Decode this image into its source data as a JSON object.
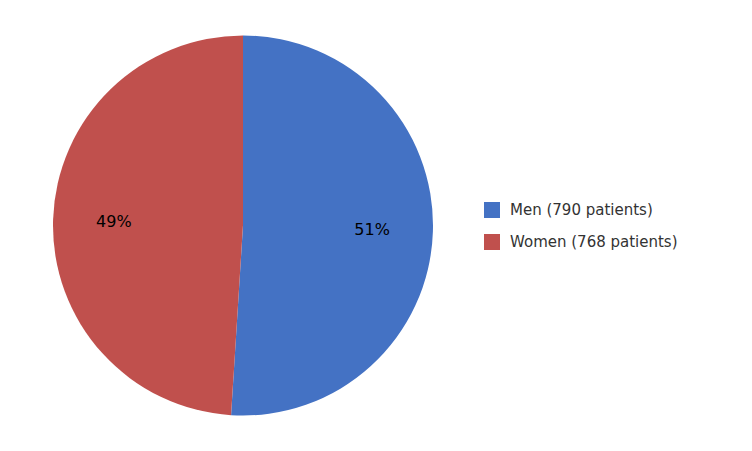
{
  "chart_data": {
    "type": "pie",
    "categories": [
      "Men (790 patients)",
      "Women (768 patients)"
    ],
    "values": [
      51,
      49
    ],
    "value_labels": [
      "51%",
      "49%"
    ],
    "colors": [
      "#4472C4",
      "#C0504D"
    ],
    "data_labels": true,
    "legend": "right"
  }
}
